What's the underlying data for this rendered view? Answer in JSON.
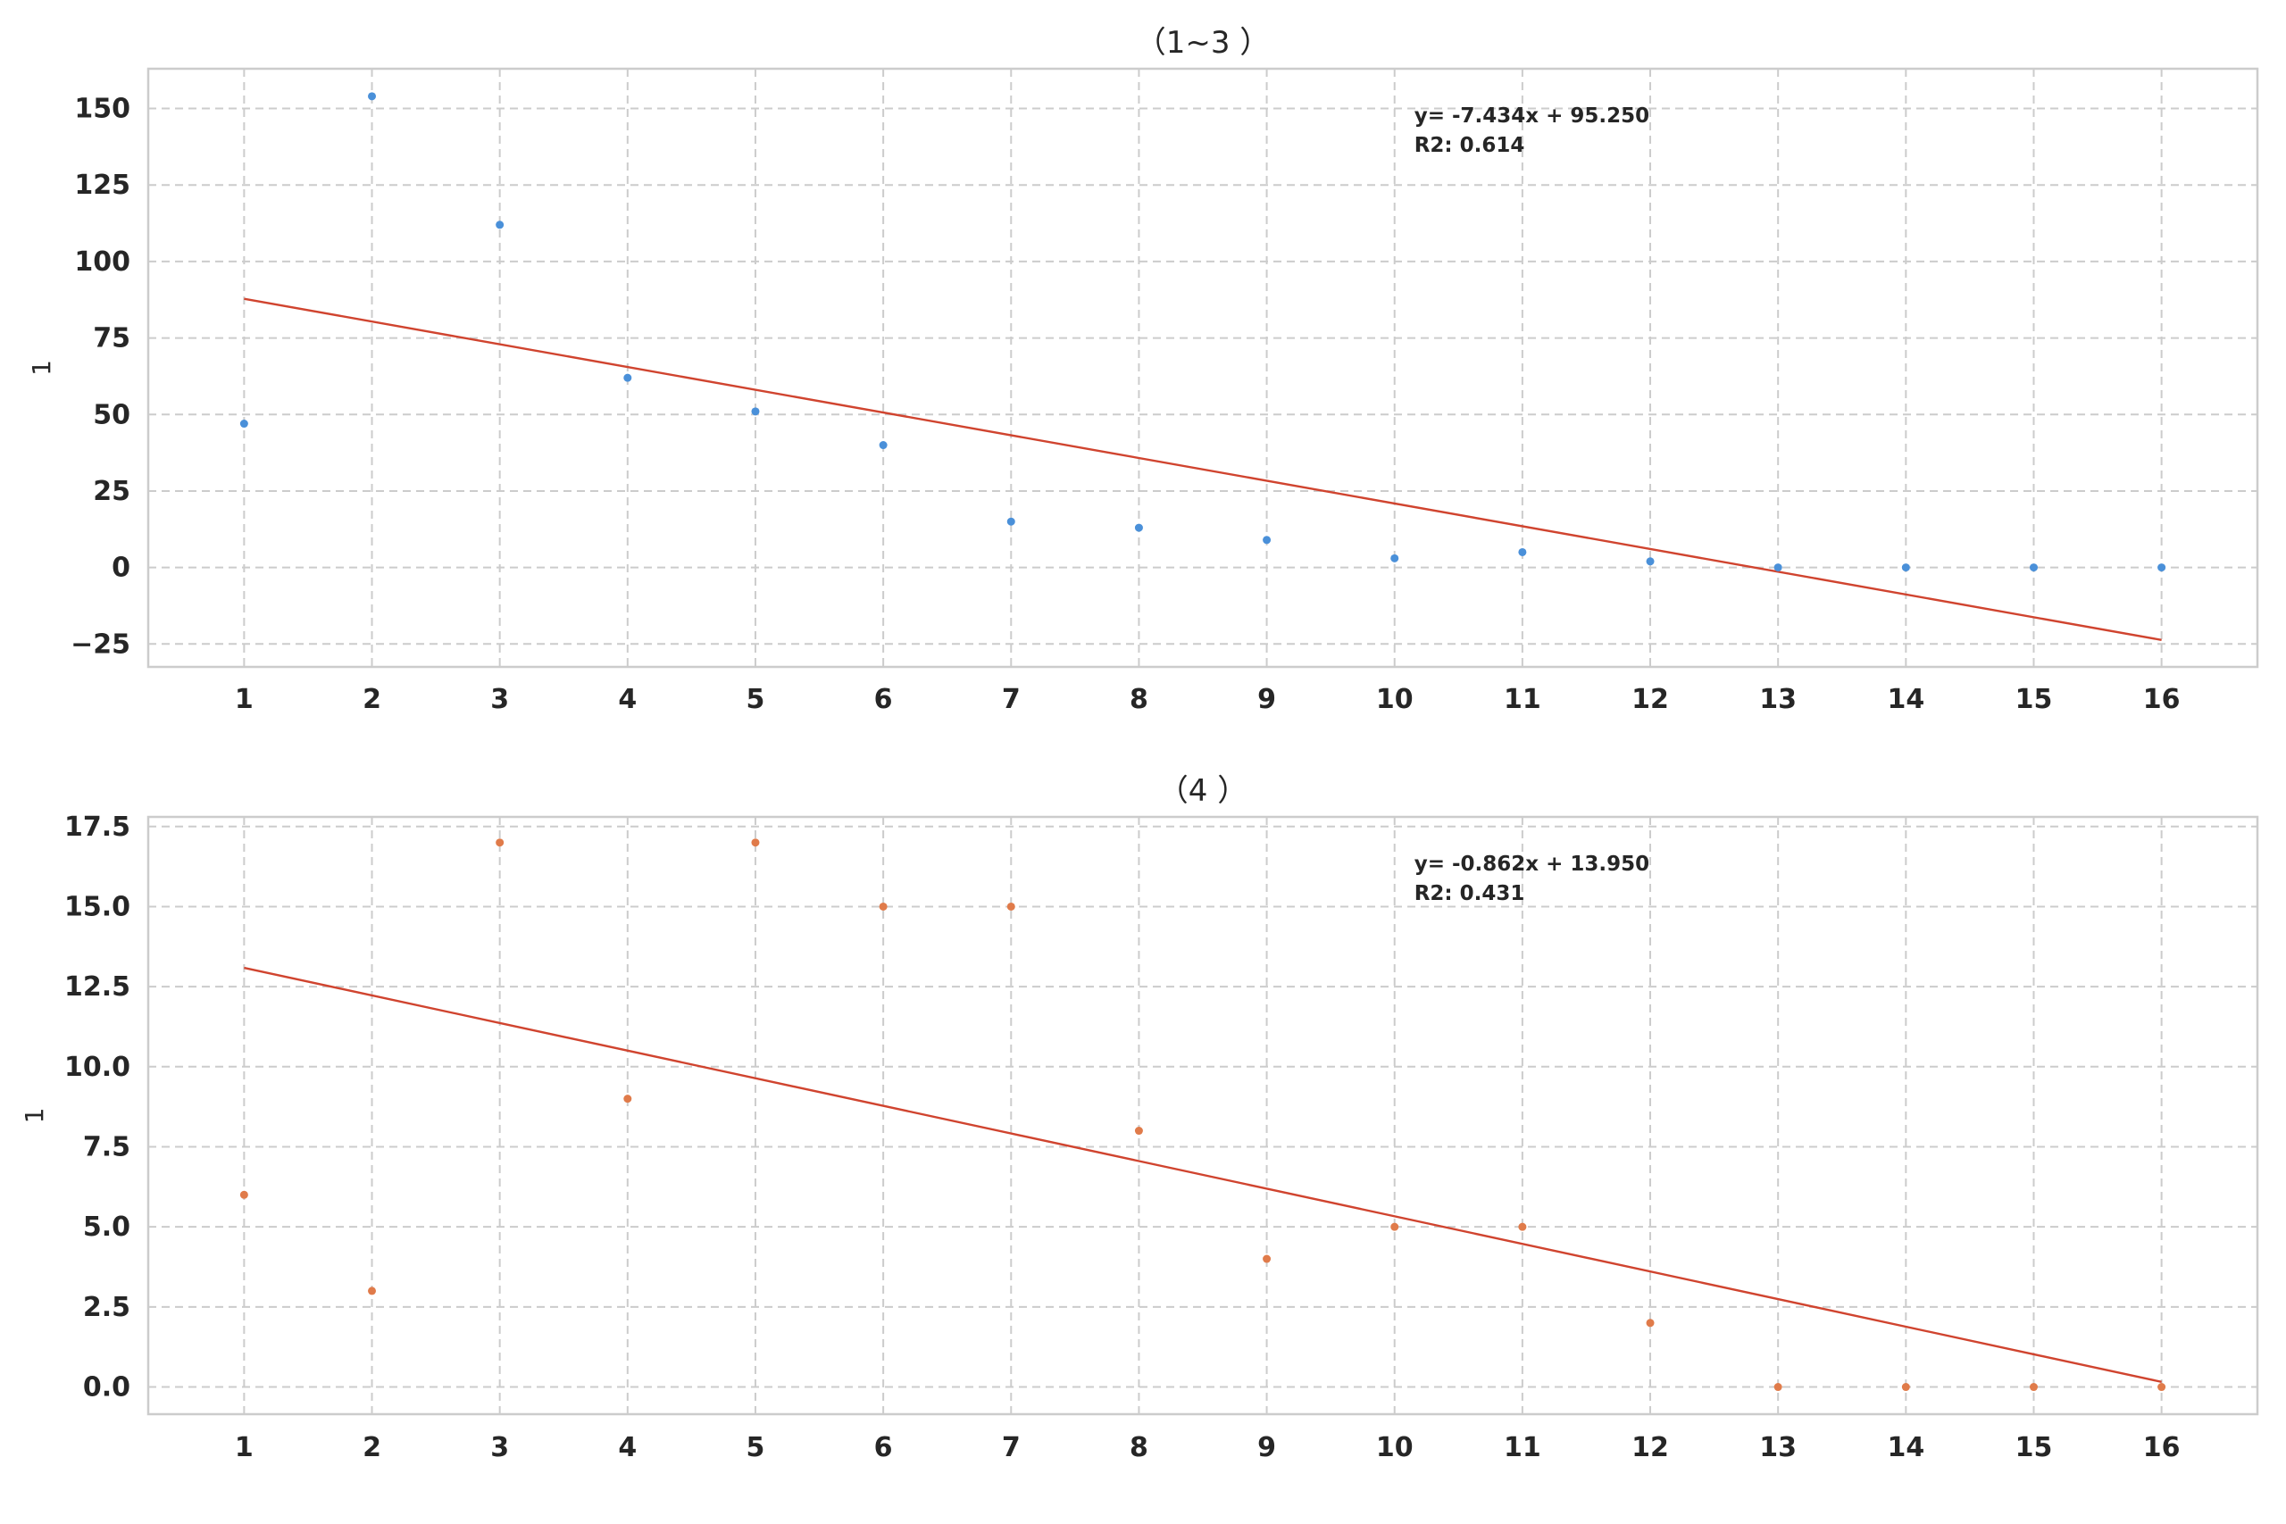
{
  "chart_data": [
    {
      "type": "scatter",
      "title": "（1~3 ）",
      "xlabel": "",
      "ylabel": "1",
      "x": [
        1,
        2,
        3,
        4,
        5,
        6,
        7,
        8,
        9,
        10,
        11,
        12,
        13,
        14,
        15,
        16
      ],
      "values": [
        47,
        154,
        112,
        62,
        51,
        40,
        15,
        13,
        9,
        3,
        5,
        2,
        0,
        0,
        0,
        0
      ],
      "xticks": [
        "1",
        "2",
        "3",
        "4",
        "5",
        "6",
        "7",
        "8",
        "9",
        "10",
        "11",
        "12",
        "13",
        "14",
        "15",
        "16"
      ],
      "yticks": [
        "−25",
        "0",
        "25",
        "50",
        "75",
        "100",
        "125",
        "150"
      ],
      "ytick_values": [
        -25,
        0,
        25,
        50,
        75,
        100,
        125,
        150
      ],
      "xlim": [
        0.25,
        16.75
      ],
      "ylim": [
        -32.5,
        163
      ],
      "fit": {
        "slope": -7.434,
        "intercept": 95.25
      },
      "annotation": [
        "y= -7.434x + 95.250",
        "R2: 0.614"
      ],
      "point_color": "#4a90d9",
      "line_color": "#d0442f",
      "grid": true
    },
    {
      "type": "scatter",
      "title": "（4 ）",
      "xlabel": "",
      "ylabel": "1",
      "x": [
        1,
        2,
        3,
        4,
        5,
        6,
        7,
        8,
        9,
        10,
        11,
        12,
        13,
        14,
        15,
        16
      ],
      "values": [
        6,
        3,
        17,
        9,
        17,
        15,
        15,
        8,
        4,
        5,
        5,
        2,
        0,
        0,
        0,
        0
      ],
      "xticks": [
        "1",
        "2",
        "3",
        "4",
        "5",
        "6",
        "7",
        "8",
        "9",
        "10",
        "11",
        "12",
        "13",
        "14",
        "15",
        "16"
      ],
      "yticks": [
        "0.0",
        "2.5",
        "5.0",
        "7.5",
        "10.0",
        "12.5",
        "15.0",
        "17.5"
      ],
      "ytick_values": [
        0,
        2.5,
        5,
        7.5,
        10,
        12.5,
        15,
        17.5
      ],
      "xlim": [
        0.25,
        16.75
      ],
      "ylim": [
        -0.85,
        17.8
      ],
      "fit": {
        "slope": -0.862,
        "intercept": 13.95
      },
      "annotation": [
        "y= -0.862x + 13.950",
        "R2: 0.431"
      ],
      "point_color": "#e07b4a",
      "line_color": "#d0442f",
      "grid": true
    }
  ]
}
